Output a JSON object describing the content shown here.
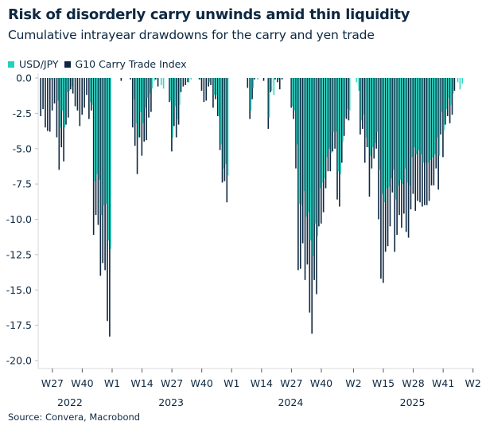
{
  "header": {
    "title": "Risk of disorderly carry unwinds amid thin liquidity",
    "subtitle": "Cumulative intrayear drawdowns for the carry and yen trade"
  },
  "source": "Source: Convera, Macrobond",
  "colors": {
    "usdjpy": "#22d1bd",
    "g10": "#0e2841",
    "axis": "#d9d9d9"
  },
  "chart_data": {
    "type": "bar",
    "title": "Risk of disorderly carry unwinds amid thin liquidity",
    "subtitle": "Cumulative intrayear drawdowns for the carry and yen trade",
    "xlabel": "",
    "ylabel": "",
    "ylim": [
      -20,
      0
    ],
    "y_ticks": [
      "0.0",
      "-2.5",
      "-5.0",
      "-7.5",
      "-10.0",
      "-12.5",
      "-15.0",
      "-17.5",
      "-20.0"
    ],
    "y_tick_values": [
      0,
      -2.5,
      -5,
      -7.5,
      -10,
      -12.5,
      -15,
      -17.5,
      -20
    ],
    "x_ticks": [
      {
        "year": 2022,
        "week": 27,
        "label": "W27"
      },
      {
        "year": 2022,
        "week": 40,
        "label": "W40"
      },
      {
        "year": 2023,
        "week": 1,
        "label": "W1"
      },
      {
        "year": 2023,
        "week": 14,
        "label": "W14"
      },
      {
        "year": 2023,
        "week": 27,
        "label": "W27"
      },
      {
        "year": 2023,
        "week": 40,
        "label": "W40"
      },
      {
        "year": 2024,
        "week": 1,
        "label": "W1"
      },
      {
        "year": 2024,
        "week": 14,
        "label": "W14"
      },
      {
        "year": 2024,
        "week": 27,
        "label": "W27"
      },
      {
        "year": 2024,
        "week": 40,
        "label": "W40"
      },
      {
        "year": 2025,
        "week": 2,
        "label": "W2"
      },
      {
        "year": 2025,
        "week": 15,
        "label": "W15"
      },
      {
        "year": 2025,
        "week": 28,
        "label": "W28"
      },
      {
        "year": 2025,
        "week": 41,
        "label": "W41"
      },
      {
        "year": 2026,
        "week": 2,
        "label": "W2"
      }
    ],
    "year_labels": [
      "2022",
      "2023",
      "2024",
      "2025"
    ],
    "legend": {
      "placement": "top-left",
      "entries": [
        "USD/JPY",
        "G10 Carry Trade Index"
      ]
    },
    "grid": false,
    "series": [
      {
        "name": "USD/JPY",
        "color": "#22d1bd",
        "by_year": [
          {
            "year": 2022,
            "start_week": 22,
            "values": [
              0,
              0,
              0,
              0,
              -0.1,
              0,
              0,
              -1.6,
              -3.5,
              -2.3,
              -3.5,
              -1.0,
              -0.9,
              -0.6,
              0,
              0,
              0,
              0,
              0,
              0,
              0,
              -1.7,
              -1.9,
              -7.3,
              -6.8,
              -7.2,
              -9.7,
              -9.0,
              -8.9,
              -11.5,
              -12.1
            ]
          },
          {
            "year": 2023,
            "start_week": 1,
            "values": [
              0,
              0,
              0,
              0,
              0,
              0,
              0,
              0,
              0,
              -1.5,
              -3.2,
              -4.2,
              -2.4,
              -3.2,
              -2.1,
              -1.4,
              -1.1,
              -0.75,
              -0.2,
              0,
              0,
              -0.5,
              -0.75,
              0,
              0,
              -1.6,
              -4.2,
              -2.0,
              -2.9,
              -1.9,
              0,
              0,
              0,
              -0.3,
              -0.1,
              0,
              0,
              0,
              -0.1,
              0,
              0,
              0,
              -0.3,
              0,
              -1.2,
              -1.2,
              -2.7,
              -4.7,
              -6.4,
              -6.1,
              -6.9,
              0
            ]
          },
          {
            "year": 2024,
            "start_week": 8,
            "values": [
              0,
              -2.3,
              -0.7,
              0,
              -0.1,
              0,
              0,
              0,
              0,
              -2.8,
              -0.9,
              -1.2,
              0,
              -0.1,
              0,
              0,
              0,
              0,
              0,
              -2.0,
              -2.3,
              -4.7,
              -8.9,
              -9.0,
              -8.0,
              -9.8,
              -9.5,
              -11.5,
              -12.6,
              -10.3,
              -11.2,
              -7.8,
              -7.4,
              -7.1,
              -5.6,
              -5.0,
              -5.3,
              -3.8,
              -3.8,
              -6.6,
              -6.8,
              -4.5,
              -2.8,
              -2.2,
              -2.3
            ]
          },
          {
            "year": 2025,
            "start_week": 3,
            "values": [
              -0.3,
              -0.9,
              -3.0,
              -2.6,
              -4.2,
              -4.9,
              -5.5,
              -4.9,
              -4.6,
              -3.8,
              -6.5,
              -8.2,
              -8.8,
              -7.8,
              -7.7,
              -7.1,
              -6.5,
              -8.6,
              -7.6,
              -7.2,
              -7.5,
              -6.4,
              -7.4,
              -7.6,
              -5.6,
              -4.9,
              -5.4,
              -5.1,
              -5.4,
              -6.0,
              -6.0,
              -6.0,
              -5.8,
              -5.6,
              -5.4,
              -4.2,
              -5.5,
              -2.4,
              -3.7,
              -2.2,
              -1.4,
              -1.9,
              -1.1,
              0,
              -0.3,
              -0.8,
              -0.4
            ]
          }
        ]
      },
      {
        "name": "G10 Carry Trade Index",
        "color": "#0e2841",
        "by_year": [
          {
            "year": 2022,
            "start_week": 22,
            "values": [
              -2.7,
              -2.2,
              -3.5,
              -3.75,
              -3.8,
              -2.3,
              -1.8,
              -4.2,
              -6.5,
              -4.9,
              -5.9,
              -3.3,
              -2.8,
              -0.8,
              -1.1,
              -2.0,
              -2.3,
              -3.4,
              -2.6,
              -2.1,
              -1.2,
              -2.9,
              -2.3,
              -11.1,
              -9.7,
              -10.4,
              -14.0,
              -13.1,
              -13.6,
              -17.2,
              -18.3
            ]
          },
          {
            "year": 2023,
            "start_week": 1,
            "values": [
              0,
              0,
              0,
              0,
              -0.2,
              0,
              0,
              0,
              -0.1,
              -3.5,
              -4.8,
              -6.8,
              -4.2,
              -5.5,
              -4.5,
              -4.4,
              -2.8,
              -2.4,
              0,
              -0.1,
              -0.6,
              0,
              0,
              0,
              0,
              -1.7,
              -5.2,
              -3.4,
              -4.2,
              -3.3,
              -1.0,
              -0.6,
              -0.5,
              -0.3,
              0,
              0,
              0,
              0,
              -0.1,
              -0.9,
              -1.7,
              -1.6,
              -0.6,
              -0.5,
              -2.1,
              -1.5,
              -2.7,
              -5.1,
              -7.4,
              -7.3,
              -8.8,
              0
            ]
          },
          {
            "year": 2024,
            "start_week": 8,
            "values": [
              -0.7,
              -2.9,
              -1.5,
              -0.1,
              0,
              0,
              0,
              -0.2,
              0,
              -3.6,
              -1.0,
              0,
              -0.1,
              -0.3,
              -0.8,
              -0.1,
              0,
              0,
              0,
              -2.1,
              -2.9,
              -6.4,
              -13.6,
              -13.5,
              -11.7,
              -14.3,
              -13.2,
              -16.6,
              -18.1,
              -14.3,
              -15.3,
              -10.5,
              -10.3,
              -9.5,
              -7.8,
              -6.6,
              -6.6,
              -5.2,
              -5.0,
              -8.6,
              -9.1,
              -6.0,
              -4.1,
              -2.9,
              -3.0
            ]
          },
          {
            "year": 2025,
            "start_week": 3,
            "values": [
              0,
              0,
              -4.0,
              -3.6,
              -6.0,
              -4.9,
              -8.4,
              -6.4,
              -5.7,
              -5.0,
              -10.0,
              -14.2,
              -14.5,
              -12.3,
              -11.9,
              -10.5,
              -8.1,
              -12.3,
              -11.1,
              -9.7,
              -10.6,
              -9.6,
              -10.9,
              -11.3,
              -9.3,
              -8.2,
              -9.4,
              -8.7,
              -8.8,
              -9.1,
              -9.0,
              -9.0,
              -8.7,
              -7.6,
              -7.6,
              -6.4,
              -7.9,
              -4.0,
              -5.6,
              -3.3,
              -2.7,
              -3.2,
              -2.6,
              -0.9,
              0,
              0,
              0
            ]
          }
        ]
      }
    ]
  }
}
